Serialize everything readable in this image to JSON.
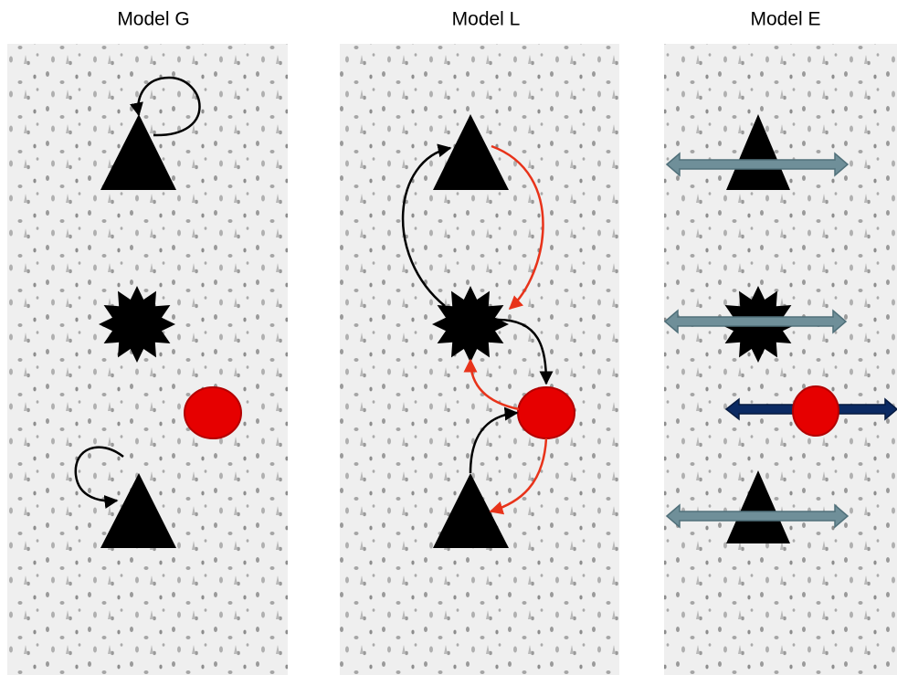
{
  "panels": [
    {
      "title": "Model G"
    },
    {
      "title": "Model L"
    },
    {
      "title": "Model E"
    }
  ]
}
